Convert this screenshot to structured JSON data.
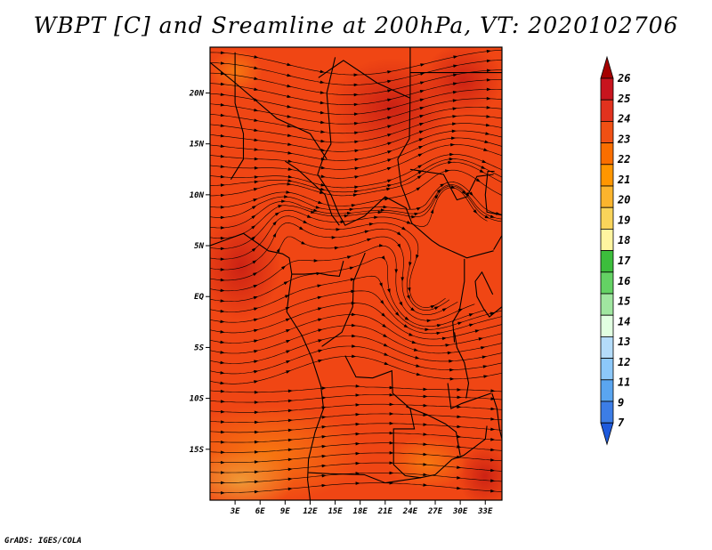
{
  "title": "WBPT [C] and Sreamline at 200hPa, VT: 2020102706",
  "credit": "GrADS: IGES/COLA",
  "axes": {
    "x_ticks": [
      "3E",
      "6E",
      "9E",
      "12E",
      "15E",
      "18E",
      "21E",
      "24E",
      "27E",
      "30E",
      "33E"
    ],
    "y_ticks": [
      "20N",
      "15N",
      "10N",
      "5N",
      "EQ",
      "5S",
      "10S",
      "15S"
    ]
  },
  "map": {
    "lon_range": [
      0,
      35
    ],
    "lat_range": [
      -20,
      24.5
    ],
    "background_field": "WBPT",
    "overlay": "streamlines"
  },
  "colorbar": {
    "labels": [
      "26",
      "25",
      "24",
      "23",
      "22",
      "21",
      "20",
      "19",
      "18",
      "17",
      "16",
      "15",
      "14",
      "13",
      "12",
      "11",
      "9",
      "7"
    ],
    "colors": [
      "#a50000",
      "#c8141e",
      "#e1321e",
      "#f05014",
      "#fa6e00",
      "#ff9600",
      "#fbb42d",
      "#f9d45a",
      "#fff5a0",
      "#3cbe3c",
      "#64d264",
      "#a0e6a0",
      "#e1ffe1",
      "#b4dcfa",
      "#8cc8fa",
      "#5aa5f0",
      "#3c7de6",
      "#1e5adc"
    ]
  },
  "colors": {
    "field_base": "#f04614",
    "streamline": "#000000"
  }
}
